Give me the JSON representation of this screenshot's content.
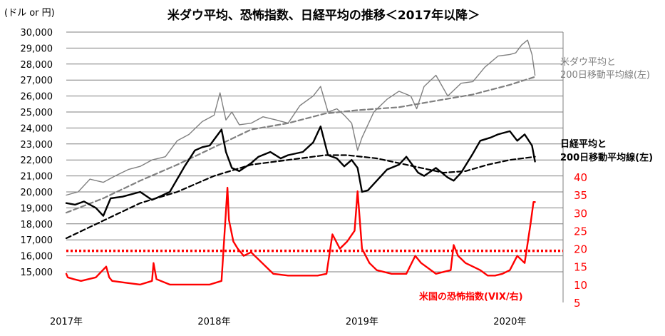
{
  "chart_data": {
    "type": "line",
    "title": "米ダウ平均、恐怖指数、日経平均の推移＜2017年以降＞",
    "unit_label": "(ドル or 円)",
    "left_axis": {
      "ylim": [
        13000,
        30000
      ],
      "ticks": [
        "30,000",
        "29,000",
        "28,000",
        "27,000",
        "26,000",
        "25,000",
        "24,000",
        "23,000",
        "22,000",
        "21,000",
        "20,000",
        "19,000",
        "18,000",
        "17,000",
        "16,000",
        "15,000"
      ],
      "tick_values": [
        30000,
        29000,
        28000,
        27000,
        26000,
        25000,
        24000,
        23000,
        22000,
        21000,
        20000,
        19000,
        18000,
        17000,
        16000,
        15000
      ]
    },
    "right_axis": {
      "ylim": [
        5,
        40
      ],
      "ticks": [
        "40",
        "35",
        "30",
        "25",
        "20",
        "15",
        "10",
        "5"
      ],
      "tick_values": [
        40,
        35,
        30,
        25,
        20,
        15,
        10,
        5
      ],
      "color": "#ff0000"
    },
    "x_axis": {
      "range": [
        2017.0,
        2020.36
      ],
      "ticks": [
        "2017年",
        "2018年",
        "2019年",
        "2020年"
      ],
      "tick_values": [
        2017,
        2018,
        2019,
        2020
      ]
    },
    "grid": true,
    "series": [
      {
        "name": "米ダウ平均と200日移動平均線(左)",
        "label_lines": [
          "米ダウ平均と",
          "200日移動平均線(左)"
        ],
        "axis": "left",
        "color": "#808080",
        "style": "solid",
        "width": 1.4,
        "x": [
          2017.0,
          2017.08,
          2017.16,
          2017.25,
          2017.33,
          2017.42,
          2017.5,
          2017.58,
          2017.67,
          2017.75,
          2017.83,
          2017.92,
          2018.0,
          2018.04,
          2018.08,
          2018.12,
          2018.17,
          2018.25,
          2018.33,
          2018.42,
          2018.5,
          2018.58,
          2018.67,
          2018.72,
          2018.77,
          2018.83,
          2018.88,
          2018.93,
          2018.97,
          2019.0,
          2019.08,
          2019.17,
          2019.25,
          2019.33,
          2019.37,
          2019.42,
          2019.5,
          2019.58,
          2019.67,
          2019.75,
          2019.83,
          2019.92,
          2020.0,
          2020.04,
          2020.08,
          2020.12,
          2020.15,
          2020.17
        ],
        "values": [
          19800,
          20000,
          20800,
          20600,
          21000,
          21400,
          21600,
          22000,
          22200,
          23200,
          23600,
          24400,
          24800,
          26200,
          24500,
          25000,
          24200,
          24300,
          24700,
          24500,
          24300,
          25400,
          26000,
          26600,
          25000,
          25200,
          24800,
          24300,
          22600,
          23400,
          25000,
          25800,
          26300,
          26000,
          25200,
          26600,
          27300,
          26000,
          26800,
          26900,
          27800,
          28500,
          28600,
          28700,
          29200,
          29500,
          28600,
          27300
        ]
      },
      {
        "name": "ダウ200日移動平均",
        "axis": "left",
        "color": "#808080",
        "style": "dashed",
        "width": 2.2,
        "x": [
          2017.0,
          2017.25,
          2017.5,
          2017.75,
          2018.0,
          2018.25,
          2018.5,
          2018.75,
          2018.95,
          2019.1,
          2019.25,
          2019.5,
          2019.75,
          2020.0,
          2020.17
        ],
        "values": [
          18700,
          19600,
          20700,
          21700,
          22800,
          23900,
          24300,
          24900,
          25100,
          25200,
          25300,
          25700,
          26100,
          26700,
          27200
        ]
      },
      {
        "name": "日経平均と200日移動平均線(左)",
        "label_lines": [
          "日経平均と",
          "200日移動平均線(左)"
        ],
        "axis": "left",
        "color": "#000000",
        "style": "solid",
        "width": 2.4,
        "x": [
          2017.0,
          2017.06,
          2017.12,
          2017.2,
          2017.25,
          2017.3,
          2017.38,
          2017.5,
          2017.58,
          2017.63,
          2017.7,
          2017.75,
          2017.8,
          2017.87,
          2017.92,
          2017.97,
          2018.05,
          2018.08,
          2018.12,
          2018.17,
          2018.25,
          2018.3,
          2018.38,
          2018.45,
          2018.5,
          2018.6,
          2018.67,
          2018.72,
          2018.77,
          2018.83,
          2018.88,
          2018.93,
          2018.97,
          2019.0,
          2019.04,
          2019.1,
          2019.17,
          2019.25,
          2019.3,
          2019.38,
          2019.42,
          2019.5,
          2019.58,
          2019.62,
          2019.67,
          2019.75,
          2019.8,
          2019.87,
          2019.92,
          2020.0,
          2020.05,
          2020.1,
          2020.15,
          2020.17
        ],
        "values": [
          19300,
          19200,
          19400,
          19000,
          18500,
          19600,
          19700,
          20000,
          19500,
          19700,
          20000,
          20800,
          21600,
          22600,
          22800,
          22900,
          23900,
          22500,
          21500,
          21300,
          21800,
          22200,
          22500,
          22100,
          22300,
          22500,
          23100,
          24100,
          22300,
          22100,
          21600,
          22000,
          21500,
          20000,
          20100,
          20700,
          21400,
          21700,
          22200,
          21200,
          21000,
          21500,
          20900,
          20700,
          21200,
          22400,
          23200,
          23400,
          23600,
          23800,
          23200,
          23600,
          22900,
          21900
        ]
      },
      {
        "name": "日経200日移動平均",
        "axis": "left",
        "color": "#000000",
        "style": "dashed",
        "width": 2.2,
        "x": [
          2017.0,
          2017.25,
          2017.5,
          2017.75,
          2018.0,
          2018.25,
          2018.5,
          2018.75,
          2018.9,
          2019.1,
          2019.25,
          2019.4,
          2019.55,
          2019.7,
          2019.85,
          2020.0,
          2020.17
        ],
        "values": [
          17100,
          18200,
          19300,
          20000,
          21000,
          21700,
          22000,
          22300,
          22300,
          22100,
          21800,
          21500,
          21200,
          21300,
          21700,
          22000,
          22200
        ]
      },
      {
        "name": "米国の恐怖指数(VIX/右)",
        "axis": "right",
        "color": "#ff0000",
        "style": "solid",
        "width": 2.4,
        "x": [
          2017.0,
          2017.01,
          2017.05,
          2017.1,
          2017.15,
          2017.2,
          2017.27,
          2017.29,
          2017.31,
          2017.4,
          2017.5,
          2017.58,
          2017.59,
          2017.61,
          2017.7,
          2017.8,
          2017.9,
          2017.97,
          2018.05,
          2018.09,
          2018.1,
          2018.13,
          2018.16,
          2018.2,
          2018.25,
          2018.3,
          2018.4,
          2018.5,
          2018.6,
          2018.7,
          2018.76,
          2018.8,
          2018.85,
          2018.9,
          2018.95,
          2018.97,
          2019.0,
          2019.05,
          2019.1,
          2019.2,
          2019.3,
          2019.36,
          2019.4,
          2019.5,
          2019.6,
          2019.62,
          2019.65,
          2019.7,
          2019.75,
          2019.8,
          2019.85,
          2019.9,
          2019.95,
          2020.0,
          2020.05,
          2020.1,
          2020.14,
          2020.16,
          2020.17
        ],
        "values": [
          13,
          12,
          11.5,
          11,
          11.5,
          12,
          15,
          12,
          11,
          10.5,
          10,
          11,
          16,
          11.5,
          10,
          10,
          10,
          10,
          11,
          37,
          28,
          22,
          20,
          18,
          19,
          17,
          13,
          12.5,
          12.5,
          12.5,
          13,
          24,
          20,
          22,
          25,
          36,
          20,
          16,
          14,
          13,
          13,
          18,
          16,
          13,
          14,
          21,
          18,
          16,
          15,
          14,
          12.5,
          12.5,
          13,
          14,
          18,
          16,
          27,
          33,
          33
        ]
      }
    ],
    "annotations": [
      {
        "type": "hline",
        "axis": "right",
        "value": 19.4,
        "color": "#ff0000",
        "style": "dotted"
      }
    ]
  },
  "layout_colors": {
    "grid": "#7f7f7f",
    "title": "#000000",
    "axis_text": "#000000",
    "vix": "#ff0000"
  }
}
